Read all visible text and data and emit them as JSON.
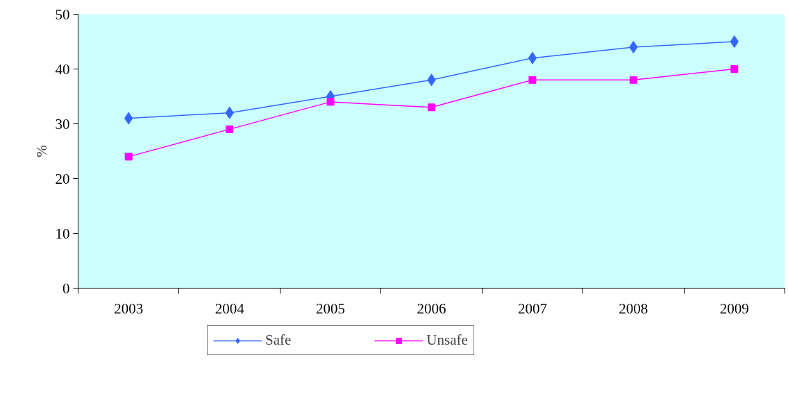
{
  "chart_data": {
    "type": "line",
    "ylabel": "%",
    "categories": [
      "2003",
      "2004",
      "2005",
      "2006",
      "2007",
      "2008",
      "2009"
    ],
    "series": [
      {
        "name": "Safe",
        "color": "#3366ff",
        "marker": "diamond",
        "values": [
          31,
          32,
          35,
          38,
          42,
          44,
          45
        ]
      },
      {
        "name": "Unsafe",
        "color": "#ff00ff",
        "marker": "square",
        "values": [
          24,
          29,
          34,
          33,
          38,
          38,
          40
        ]
      }
    ],
    "ylim": [
      0,
      50
    ],
    "yticks": [
      0,
      10,
      20,
      30,
      40,
      50
    ],
    "grid": false,
    "legend": "bottom",
    "line_style": "solid"
  }
}
